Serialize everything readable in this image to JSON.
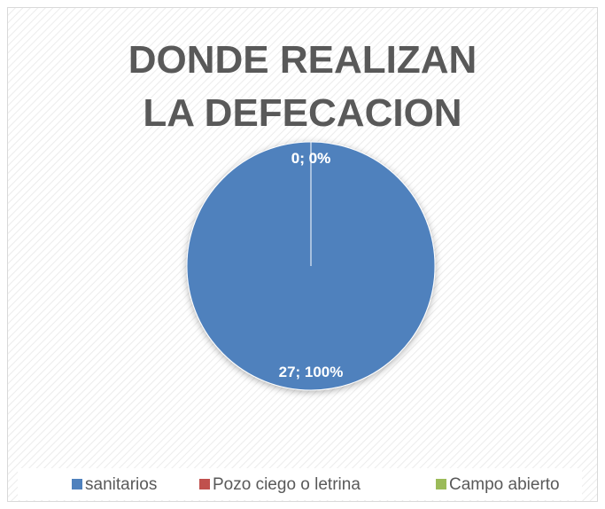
{
  "chart_data": {
    "type": "pie",
    "title": "DONDE REALIZAN LA DEFECACION",
    "categories": [
      "sanitarios",
      "Pozo ciego o letrina",
      "Campo abierto"
    ],
    "values": [
      27,
      0,
      0
    ],
    "value_labels": [
      "27; 100%",
      "0; 0%",
      "0; 0%"
    ],
    "colors": [
      "#4f81bd",
      "#c0504d",
      "#9bbb59"
    ],
    "legend": "bottom"
  }
}
